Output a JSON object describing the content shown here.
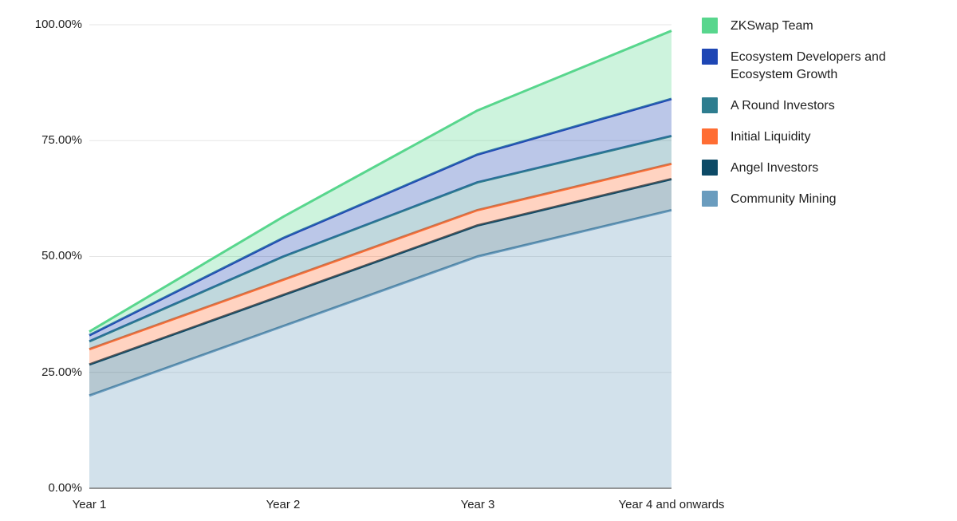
{
  "chart_data": {
    "type": "area",
    "stacked": true,
    "title": "",
    "xlabel": "",
    "ylabel": "",
    "categories": [
      "Year 1",
      "Year 2",
      "Year 3",
      "Year 4 and onwards"
    ],
    "series": [
      {
        "name": "ZKSwap Team",
        "color": "#58d68d",
        "values": [
          0.8,
          4.6,
          9.5,
          14.7
        ]
      },
      {
        "name": "Ecosystem Developers and Ecosystem Growth",
        "color": "#1e46b4",
        "values": [
          1.3,
          4.0,
          6.0,
          8.0
        ]
      },
      {
        "name": "A Round Investors",
        "color": "#2e7d8f",
        "values": [
          1.7,
          5.0,
          6.0,
          6.0
        ]
      },
      {
        "name": "Initial Liquidity",
        "color": "#ff6d33",
        "values": [
          3.3,
          3.3,
          3.3,
          3.3
        ]
      },
      {
        "name": "Angel Investors",
        "color": "#0d4a66",
        "values": [
          6.7,
          6.7,
          6.7,
          6.7
        ]
      },
      {
        "name": "Community Mining",
        "color": "#6a9cbe",
        "values": [
          20.0,
          35.0,
          50.0,
          60.0
        ]
      }
    ],
    "stack_order_bottom_to_top": [
      "Community Mining",
      "Angel Investors",
      "Initial Liquidity",
      "A Round Investors",
      "Ecosystem Developers and Ecosystem Growth",
      "ZKSwap Team"
    ],
    "ylim": [
      0,
      100
    ],
    "y_tick_labels": [
      "0.00%",
      "25.00%",
      "50.00%",
      "75.00%",
      "100.00%"
    ],
    "grid": true,
    "legend_position": "right",
    "area_fill_opacity": 0.3
  },
  "colors": {
    "background": "#ffffff",
    "gridline": "#e6e6e6",
    "axis_line": "#757575",
    "axis_text": "#1f1f1f",
    "legend_text": "#1f1f1f"
  }
}
